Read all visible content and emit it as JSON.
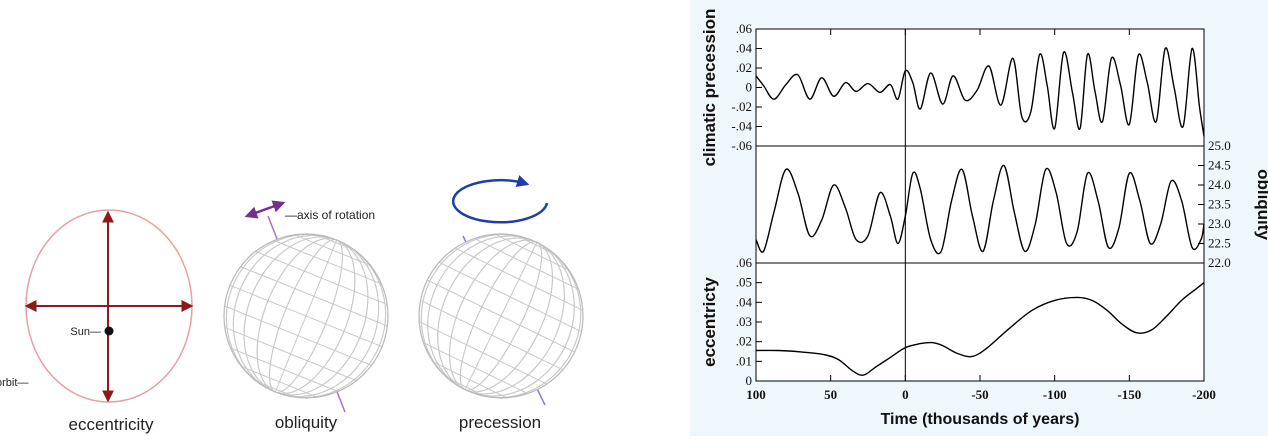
{
  "diagrams": {
    "eccentricity": {
      "caption": "eccentricity",
      "sun_label": "Sun—",
      "orbit_label": "orbit—"
    },
    "obliquity": {
      "caption": "obliquity",
      "axis_label": "—axis of rotation"
    },
    "precession": {
      "caption": "precession"
    }
  },
  "colors": {
    "orbit": "#e8a0a0",
    "arrow": "#8b1a1a",
    "globe_grid": "#c8c8c8",
    "axis": "#b070c0",
    "obliquity_arrow": "#7b2d8e",
    "precession_arrow": "#1f3fa8",
    "panel_bg": "#eef7fb",
    "curve": "#000000"
  },
  "chart_data": {
    "type": "line",
    "xlabel": "Time (thousands of years)",
    "xlim": [
      100,
      -200
    ],
    "x_ticks": [
      "100",
      "50",
      "0",
      "-50",
      "-100",
      "-150",
      "-200"
    ],
    "panels": [
      {
        "name": "climatic-precession",
        "ylabel": "climatic precession",
        "y_axis_side": "left",
        "ylim": [
          -0.06,
          0.06
        ],
        "y_ticks": [
          ".06",
          ".04",
          ".02",
          "0",
          "-.02",
          "-.04",
          "-.06"
        ],
        "x": [
          100,
          95,
          88,
          80,
          72,
          64,
          56,
          48,
          40,
          33,
          25,
          17,
          10,
          5,
          0,
          -5,
          -10,
          -17,
          -25,
          -32,
          -40,
          -48,
          -56,
          -64,
          -72,
          -78,
          -84,
          -90,
          -95,
          -100,
          -106,
          -112,
          -117,
          -122,
          -127,
          -132,
          -138,
          -144,
          -150,
          -156,
          -162,
          -168,
          -174,
          -180,
          -186,
          -192,
          -197,
          -200
        ],
        "y": [
          0.012,
          0.002,
          -0.012,
          0.003,
          0.013,
          -0.012,
          0.01,
          -0.009,
          0.005,
          -0.004,
          0.004,
          -0.005,
          0.003,
          -0.012,
          0.017,
          0.005,
          -0.022,
          0.015,
          -0.017,
          0.012,
          -0.013,
          -0.003,
          0.022,
          -0.018,
          0.03,
          -0.03,
          -0.025,
          0.034,
          0.002,
          -0.042,
          0.036,
          -0.006,
          -0.042,
          0.034,
          -0.004,
          -0.035,
          0.03,
          0.003,
          -0.038,
          0.033,
          0.005,
          -0.035,
          0.04,
          0.0,
          -0.04,
          0.04,
          -0.02,
          -0.05
        ]
      },
      {
        "name": "obliquity",
        "ylabel": "obliquity",
        "y_axis_side": "right",
        "ylim": [
          22.0,
          25.0
        ],
        "y_ticks": [
          "25.0",
          "24.5",
          "24.0",
          "23.5",
          "23.0",
          "22.5",
          "22.0"
        ],
        "x": [
          100,
          95,
          88,
          80,
          72,
          64,
          56,
          48,
          40,
          33,
          25,
          17,
          10,
          5,
          0,
          -5,
          -10,
          -17,
          -24,
          -31,
          -38,
          -45,
          -52,
          -59,
          -66,
          -73,
          -80,
          -87,
          -94,
          -101,
          -108,
          -115,
          -122,
          -129,
          -136,
          -143,
          -150,
          -157,
          -164,
          -171,
          -178,
          -185,
          -192,
          -198,
          -200
        ],
        "y": [
          22.6,
          22.3,
          23.3,
          24.4,
          23.8,
          22.7,
          23.1,
          24.0,
          23.4,
          22.6,
          22.7,
          23.8,
          23.2,
          22.5,
          23.2,
          24.3,
          23.9,
          22.6,
          22.3,
          23.6,
          24.4,
          23.2,
          22.3,
          23.6,
          24.5,
          23.3,
          22.3,
          23.0,
          24.4,
          23.8,
          22.5,
          22.8,
          24.3,
          23.6,
          22.4,
          22.9,
          24.3,
          23.6,
          22.5,
          23.0,
          24.1,
          23.6,
          22.4,
          22.6,
          23.0
        ]
      },
      {
        "name": "eccentricity",
        "ylabel": "eccentricty",
        "y_axis_side": "left",
        "ylim": [
          0,
          0.06
        ],
        "y_ticks": [
          ".06",
          ".05",
          ".04",
          ".03",
          ".02",
          ".01",
          "0"
        ],
        "x": [
          100,
          85,
          70,
          55,
          45,
          35,
          28,
          20,
          10,
          0,
          -10,
          -18,
          -25,
          -35,
          -45,
          -55,
          -70,
          -85,
          -100,
          -115,
          -125,
          -135,
          -145,
          -155,
          -165,
          -175,
          -185,
          -195,
          -200
        ],
        "y": [
          0.0155,
          0.0155,
          0.0148,
          0.0135,
          0.011,
          0.005,
          0.003,
          0.007,
          0.012,
          0.017,
          0.019,
          0.0195,
          0.018,
          0.014,
          0.0125,
          0.017,
          0.027,
          0.036,
          0.041,
          0.0425,
          0.041,
          0.036,
          0.029,
          0.0245,
          0.026,
          0.033,
          0.041,
          0.047,
          0.05
        ]
      }
    ]
  }
}
